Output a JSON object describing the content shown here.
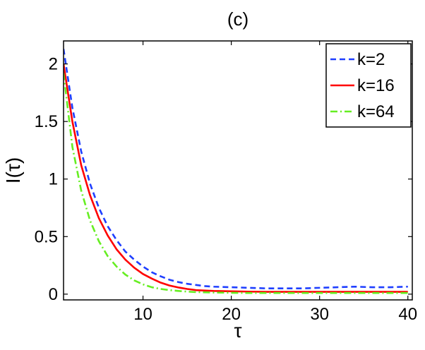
{
  "chart_data": {
    "type": "line",
    "title": "(c)",
    "xlabel": "τ",
    "ylabel": "I(τ)",
    "xlim": [
      1,
      40.5
    ],
    "ylim": [
      -0.05,
      2.2
    ],
    "xticks": [
      10,
      20,
      30,
      40
    ],
    "yticks": [
      0,
      0.5,
      1,
      1.5,
      2
    ],
    "xtick_labels": [
      "10",
      "20",
      "30",
      "40"
    ],
    "ytick_labels": [
      "0",
      "0.5",
      "1",
      "1.5",
      "2"
    ],
    "legend_position": "top-right",
    "series": [
      {
        "name": "k=2",
        "color": "#1f3fff",
        "style": "dashed",
        "x": [
          1,
          2,
          3,
          4,
          5,
          6,
          7,
          8,
          9,
          10,
          11,
          12,
          13,
          14,
          15,
          16,
          17,
          18,
          20,
          22,
          24,
          26,
          28,
          30,
          32,
          34,
          36,
          38,
          40
        ],
        "y": [
          2.13,
          1.62,
          1.24,
          0.96,
          0.75,
          0.59,
          0.47,
          0.37,
          0.3,
          0.24,
          0.19,
          0.155,
          0.125,
          0.105,
          0.09,
          0.08,
          0.07,
          0.065,
          0.06,
          0.055,
          0.05,
          0.05,
          0.05,
          0.055,
          0.06,
          0.065,
          0.06,
          0.06,
          0.065
        ]
      },
      {
        "name": "k=16",
        "color": "#ff0000",
        "style": "solid",
        "x": [
          1,
          2,
          3,
          4,
          5,
          6,
          7,
          8,
          9,
          10,
          11,
          12,
          13,
          14,
          15,
          16,
          18,
          20,
          22,
          24,
          26,
          28,
          30,
          32,
          34,
          36,
          38,
          40
        ],
        "y": [
          2.0,
          1.5,
          1.12,
          0.86,
          0.66,
          0.51,
          0.39,
          0.3,
          0.23,
          0.175,
          0.135,
          0.1,
          0.075,
          0.058,
          0.045,
          0.035,
          0.028,
          0.025,
          0.022,
          0.02,
          0.02,
          0.02,
          0.02,
          0.02,
          0.02,
          0.02,
          0.02,
          0.02
        ]
      },
      {
        "name": "k=64",
        "color": "#66ee22",
        "style": "dashdot",
        "x": [
          1,
          2,
          3,
          4,
          5,
          6,
          7,
          8,
          9,
          10,
          11,
          12,
          13,
          14,
          15,
          16,
          18,
          20,
          22,
          24,
          26,
          28,
          30,
          32,
          34,
          36,
          38,
          40
        ],
        "y": [
          1.92,
          1.28,
          0.9,
          0.64,
          0.46,
          0.33,
          0.24,
          0.17,
          0.12,
          0.085,
          0.06,
          0.045,
          0.035,
          0.028,
          0.022,
          0.018,
          0.014,
          0.012,
          0.01,
          0.01,
          0.01,
          0.01,
          0.01,
          0.01,
          0.01,
          0.01,
          0.01,
          0.01
        ]
      }
    ]
  }
}
